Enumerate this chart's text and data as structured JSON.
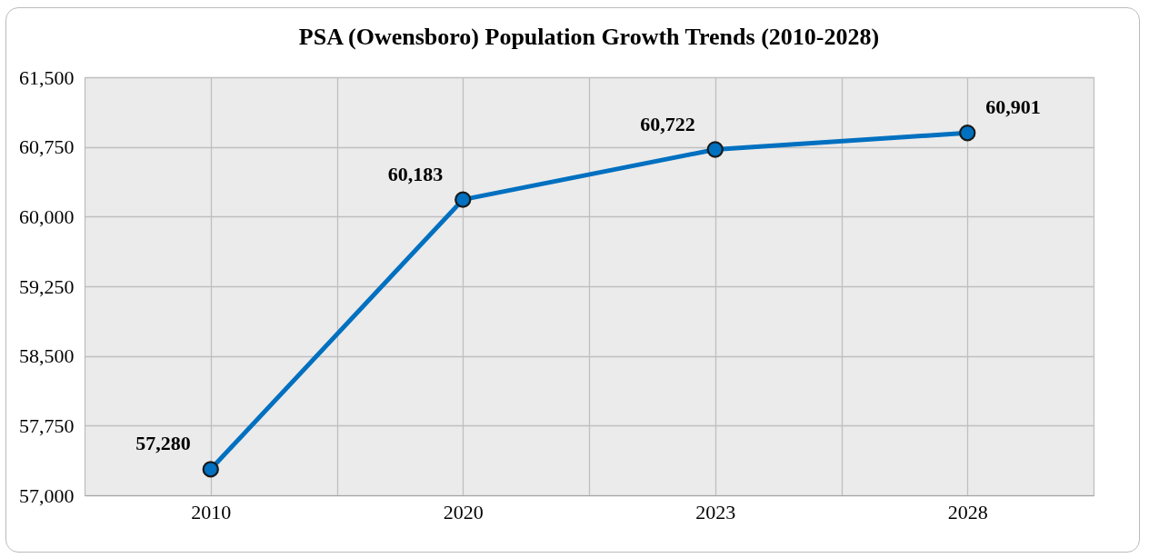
{
  "chart_data": {
    "type": "line",
    "title": "PSA (Owensboro) Population Growth Trends (2010-2028)",
    "categories": [
      "2010",
      "2020",
      "2023",
      "2028"
    ],
    "series": [
      {
        "color": "#0070c0",
        "values": [
          57280,
          60183,
          60722,
          60901
        ],
        "value_labels": [
          "57,280",
          "60,183",
          "60,722",
          "60,901"
        ]
      }
    ],
    "ylim": [
      57000,
      61500
    ],
    "yticks": [
      {
        "value": 57000,
        "label": "57,000"
      },
      {
        "value": 57750,
        "label": "57,750"
      },
      {
        "value": 58500,
        "label": "58,500"
      },
      {
        "value": 59250,
        "label": "59,250"
      },
      {
        "value": 60000,
        "label": "60,000"
      },
      {
        "value": 60750,
        "label": "60,750"
      },
      {
        "value": 61500,
        "label": "61,500"
      }
    ],
    "grid": true,
    "marker": "circle",
    "line_style": "solid"
  }
}
